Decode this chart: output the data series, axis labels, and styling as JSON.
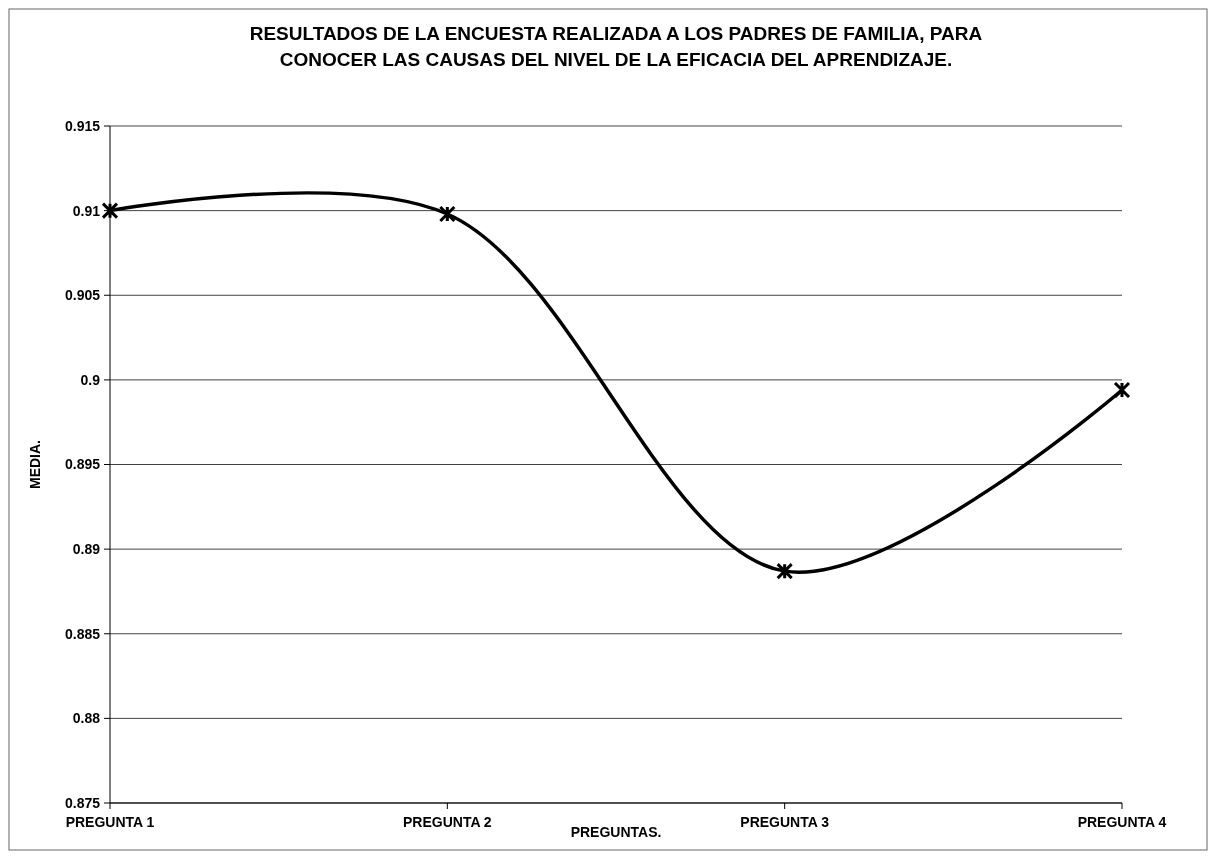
{
  "chart_data": {
    "type": "line",
    "title": "RESULTADOS DE LA ENCUESTA REALIZADA A LOS PADRES DE FAMILIA, PARA CONOCER LAS CAUSAS DEL NIVEL DE LA EFICACIA DEL APRENDIZAJE.",
    "xlabel": "PREGUNTAS.",
    "ylabel": "MEDIA.",
    "categories": [
      "PREGUNTA 1",
      "PREGUNTA 2",
      "PREGUNTA 3",
      "PREGUNTA 4"
    ],
    "series": [
      {
        "color": "#000000",
        "values": [
          0.91,
          0.9098,
          0.8887,
          0.8994
        ]
      }
    ],
    "ylim": [
      0.875,
      0.915
    ],
    "yticks": [
      0.875,
      0.88,
      0.885,
      0.89,
      0.895,
      0.9,
      0.905,
      0.91,
      0.915
    ],
    "grid": "y",
    "marker": "cross",
    "line_style": "solid"
  }
}
